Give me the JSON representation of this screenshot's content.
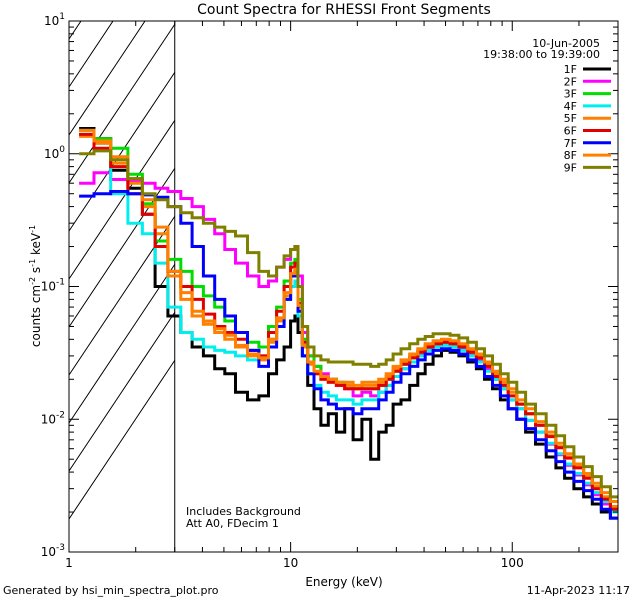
{
  "chart_data": {
    "type": "line",
    "title": "Count Spectra for RHESSI Front Segments",
    "xlabel": "Energy (keV)",
    "ylabel_main": "counts cm",
    "ylabel_sup1": "-2",
    "ylabel_mid": " s",
    "ylabel_sup2": "-1",
    "ylabel_end": " keV",
    "ylabel_sup3": "-1",
    "x_scale": "log",
    "y_scale": "log",
    "xlim": [
      1,
      300
    ],
    "ylim": [
      0.001,
      10
    ],
    "x_ticks": [
      {
        "value": 1,
        "label": "1"
      },
      {
        "value": 10,
        "label": "10"
      },
      {
        "value": 100,
        "label": "100"
      }
    ],
    "y_ticks": [
      {
        "value": 10,
        "base": "10",
        "exp": "1"
      },
      {
        "value": 1,
        "base": "10",
        "exp": "0"
      },
      {
        "value": 0.1,
        "base": "10",
        "exp": "-1"
      },
      {
        "value": 0.01,
        "base": "10",
        "exp": "-2"
      },
      {
        "value": 0.001,
        "base": "10",
        "exp": "-3"
      }
    ],
    "date": "10-Jun-2005",
    "time_range": "19:38:00 to 19:39:00",
    "hatch_region_max_energy": 3,
    "annotation_line1": "Includes Background",
    "annotation_line2": "Att A0, FDecim 1",
    "energies": [
      1.2,
      1.4,
      1.7,
      2.0,
      2.3,
      2.6,
      3.0,
      3.4,
      3.8,
      4.3,
      4.8,
      5.3,
      6.0,
      6.8,
      7.6,
      8.3,
      9.0,
      9.7,
      10.3,
      10.6,
      11.0,
      11.6,
      12.3,
      13.2,
      14.2,
      15.4,
      16.8,
      18.3,
      20,
      22,
      24,
      26,
      28,
      30,
      33,
      36,
      39,
      42,
      46,
      50,
      55,
      60,
      66,
      72,
      78,
      85,
      92,
      100,
      110,
      120,
      135,
      150,
      165,
      180,
      200,
      220,
      240,
      265,
      290
    ],
    "series": [
      {
        "name": "1F",
        "color": "#000000",
        "values": [
          1.55,
          1.3,
          0.75,
          0.55,
          0.35,
          0.1,
          0.06,
          0.045,
          0.035,
          0.03,
          0.024,
          0.022,
          0.016,
          0.014,
          0.015,
          0.022,
          0.028,
          0.035,
          0.055,
          0.06,
          0.045,
          0.03,
          0.018,
          0.012,
          0.009,
          0.011,
          0.008,
          0.012,
          0.007,
          0.01,
          0.005,
          0.008,
          0.009,
          0.013,
          0.014,
          0.018,
          0.022,
          0.026,
          0.03,
          0.033,
          0.032,
          0.03,
          0.027,
          0.024,
          0.02,
          0.017,
          0.014,
          0.012,
          0.01,
          0.008,
          0.0065,
          0.0052,
          0.0043,
          0.0036,
          0.003,
          0.0026,
          0.0023,
          0.002,
          0.0018
        ]
      },
      {
        "name": "2F",
        "color": "#ff00ff",
        "values": [
          0.6,
          0.72,
          0.64,
          0.62,
          0.6,
          0.55,
          0.52,
          0.46,
          0.4,
          0.32,
          0.25,
          0.19,
          0.15,
          0.12,
          0.1,
          0.11,
          0.14,
          0.16,
          0.19,
          0.2,
          0.12,
          0.045,
          0.03,
          0.025,
          0.022,
          0.02,
          0.018,
          0.017,
          0.015,
          0.016,
          0.015,
          0.016,
          0.018,
          0.021,
          0.024,
          0.027,
          0.031,
          0.034,
          0.036,
          0.037,
          0.036,
          0.034,
          0.031,
          0.028,
          0.024,
          0.02,
          0.017,
          0.014,
          0.012,
          0.0098,
          0.008,
          0.0065,
          0.0054,
          0.0045,
          0.0038,
          0.0032,
          0.0027,
          0.0023,
          0.002
        ]
      },
      {
        "name": "3F",
        "color": "#00dd00",
        "values": [
          1.4,
          1.3,
          1.1,
          0.7,
          0.42,
          0.22,
          0.16,
          0.13,
          0.1,
          0.085,
          0.07,
          0.055,
          0.045,
          0.038,
          0.035,
          0.05,
          0.07,
          0.11,
          0.15,
          0.16,
          0.08,
          0.04,
          0.03,
          0.025,
          0.021,
          0.02,
          0.019,
          0.018,
          0.017,
          0.017,
          0.017,
          0.018,
          0.02,
          0.023,
          0.026,
          0.029,
          0.032,
          0.035,
          0.037,
          0.038,
          0.037,
          0.035,
          0.032,
          0.029,
          0.025,
          0.021,
          0.018,
          0.015,
          0.013,
          0.011,
          0.009,
          0.0075,
          0.0062,
          0.0052,
          0.0044,
          0.0037,
          0.0031,
          0.0026,
          0.0022
        ]
      },
      {
        "name": "4F",
        "color": "#00eeee",
        "values": [
          1.5,
          1.2,
          0.5,
          0.3,
          0.25,
          0.15,
          0.07,
          0.045,
          0.04,
          0.035,
          0.033,
          0.032,
          0.03,
          0.028,
          0.03,
          0.04,
          0.055,
          0.08,
          0.1,
          0.11,
          0.06,
          0.03,
          0.022,
          0.018,
          0.016,
          0.015,
          0.014,
          0.014,
          0.013,
          0.014,
          0.014,
          0.016,
          0.018,
          0.021,
          0.024,
          0.027,
          0.03,
          0.033,
          0.035,
          0.036,
          0.035,
          0.033,
          0.03,
          0.027,
          0.023,
          0.02,
          0.017,
          0.014,
          0.012,
          0.0098,
          0.008,
          0.0066,
          0.0055,
          0.0046,
          0.0039,
          0.0033,
          0.0028,
          0.0024,
          0.002
        ]
      },
      {
        "name": "5F",
        "color": "#ff7f00",
        "values": [
          1.35,
          1.2,
          0.85,
          0.6,
          0.4,
          0.25,
          0.12,
          0.08,
          0.06,
          0.052,
          0.045,
          0.04,
          0.035,
          0.03,
          0.028,
          0.038,
          0.055,
          0.085,
          0.12,
          0.13,
          0.07,
          0.035,
          0.026,
          0.022,
          0.02,
          0.019,
          0.018,
          0.018,
          0.017,
          0.018,
          0.018,
          0.019,
          0.021,
          0.024,
          0.027,
          0.03,
          0.033,
          0.036,
          0.038,
          0.039,
          0.038,
          0.036,
          0.033,
          0.03,
          0.026,
          0.022,
          0.019,
          0.016,
          0.013,
          0.011,
          0.009,
          0.0075,
          0.0062,
          0.0052,
          0.0044,
          0.0037,
          0.0031,
          0.0026,
          0.0022
        ]
      },
      {
        "name": "6F",
        "color": "#e00000",
        "values": [
          1.4,
          1.1,
          0.8,
          0.5,
          0.35,
          0.2,
          0.13,
          0.1,
          0.08,
          0.062,
          0.05,
          0.045,
          0.04,
          0.033,
          0.03,
          0.045,
          0.065,
          0.1,
          0.14,
          0.15,
          0.075,
          0.038,
          0.027,
          0.022,
          0.02,
          0.019,
          0.018,
          0.017,
          0.017,
          0.017,
          0.017,
          0.018,
          0.02,
          0.023,
          0.026,
          0.029,
          0.032,
          0.035,
          0.037,
          0.038,
          0.037,
          0.035,
          0.032,
          0.029,
          0.025,
          0.021,
          0.018,
          0.015,
          0.013,
          0.011,
          0.009,
          0.0074,
          0.0061,
          0.0051,
          0.0043,
          0.0036,
          0.003,
          0.0025,
          0.0021
        ]
      },
      {
        "name": "7F",
        "color": "#0000ff",
        "values": [
          0.48,
          0.5,
          0.52,
          0.5,
          0.49,
          0.47,
          0.4,
          0.3,
          0.2,
          0.12,
          0.08,
          0.06,
          0.045,
          0.033,
          0.025,
          0.035,
          0.05,
          0.08,
          0.12,
          0.13,
          0.065,
          0.03,
          0.022,
          0.017,
          0.014,
          0.013,
          0.012,
          0.012,
          0.011,
          0.012,
          0.012,
          0.014,
          0.016,
          0.019,
          0.022,
          0.025,
          0.028,
          0.031,
          0.033,
          0.034,
          0.033,
          0.031,
          0.028,
          0.025,
          0.021,
          0.018,
          0.015,
          0.012,
          0.01,
          0.0085,
          0.007,
          0.0058,
          0.0048,
          0.004,
          0.0034,
          0.0029,
          0.0025,
          0.0021,
          0.0018
        ]
      },
      {
        "name": "8F",
        "color": "#ff7f00",
        "values": [
          1.5,
          1.25,
          0.95,
          0.65,
          0.45,
          0.28,
          0.13,
          0.09,
          0.065,
          0.055,
          0.048,
          0.043,
          0.036,
          0.031,
          0.029,
          0.04,
          0.058,
          0.09,
          0.125,
          0.135,
          0.072,
          0.036,
          0.027,
          0.023,
          0.021,
          0.02,
          0.019,
          0.019,
          0.018,
          0.019,
          0.019,
          0.02,
          0.022,
          0.025,
          0.028,
          0.031,
          0.034,
          0.037,
          0.039,
          0.04,
          0.039,
          0.037,
          0.034,
          0.031,
          0.027,
          0.023,
          0.02,
          0.017,
          0.014,
          0.012,
          0.0096,
          0.008,
          0.0066,
          0.0055,
          0.0046,
          0.0039,
          0.0033,
          0.0028,
          0.0024
        ]
      },
      {
        "name": "9F",
        "color": "#808000",
        "values": [
          1.0,
          1.05,
          0.9,
          0.65,
          0.5,
          0.45,
          0.4,
          0.36,
          0.33,
          0.3,
          0.28,
          0.26,
          0.24,
          0.18,
          0.13,
          0.12,
          0.14,
          0.17,
          0.19,
          0.2,
          0.1,
          0.05,
          0.035,
          0.03,
          0.028,
          0.027,
          0.027,
          0.027,
          0.026,
          0.026,
          0.025,
          0.026,
          0.028,
          0.031,
          0.034,
          0.037,
          0.04,
          0.042,
          0.044,
          0.044,
          0.043,
          0.041,
          0.038,
          0.034,
          0.03,
          0.026,
          0.022,
          0.019,
          0.016,
          0.013,
          0.011,
          0.009,
          0.0075,
          0.0062,
          0.0052,
          0.0044,
          0.0037,
          0.0031,
          0.0026
        ]
      }
    ]
  },
  "footer": {
    "generated_by": "Generated by hsi_min_spectra_plot.pro",
    "timestamp": "11-Apr-2023 11:17"
  }
}
